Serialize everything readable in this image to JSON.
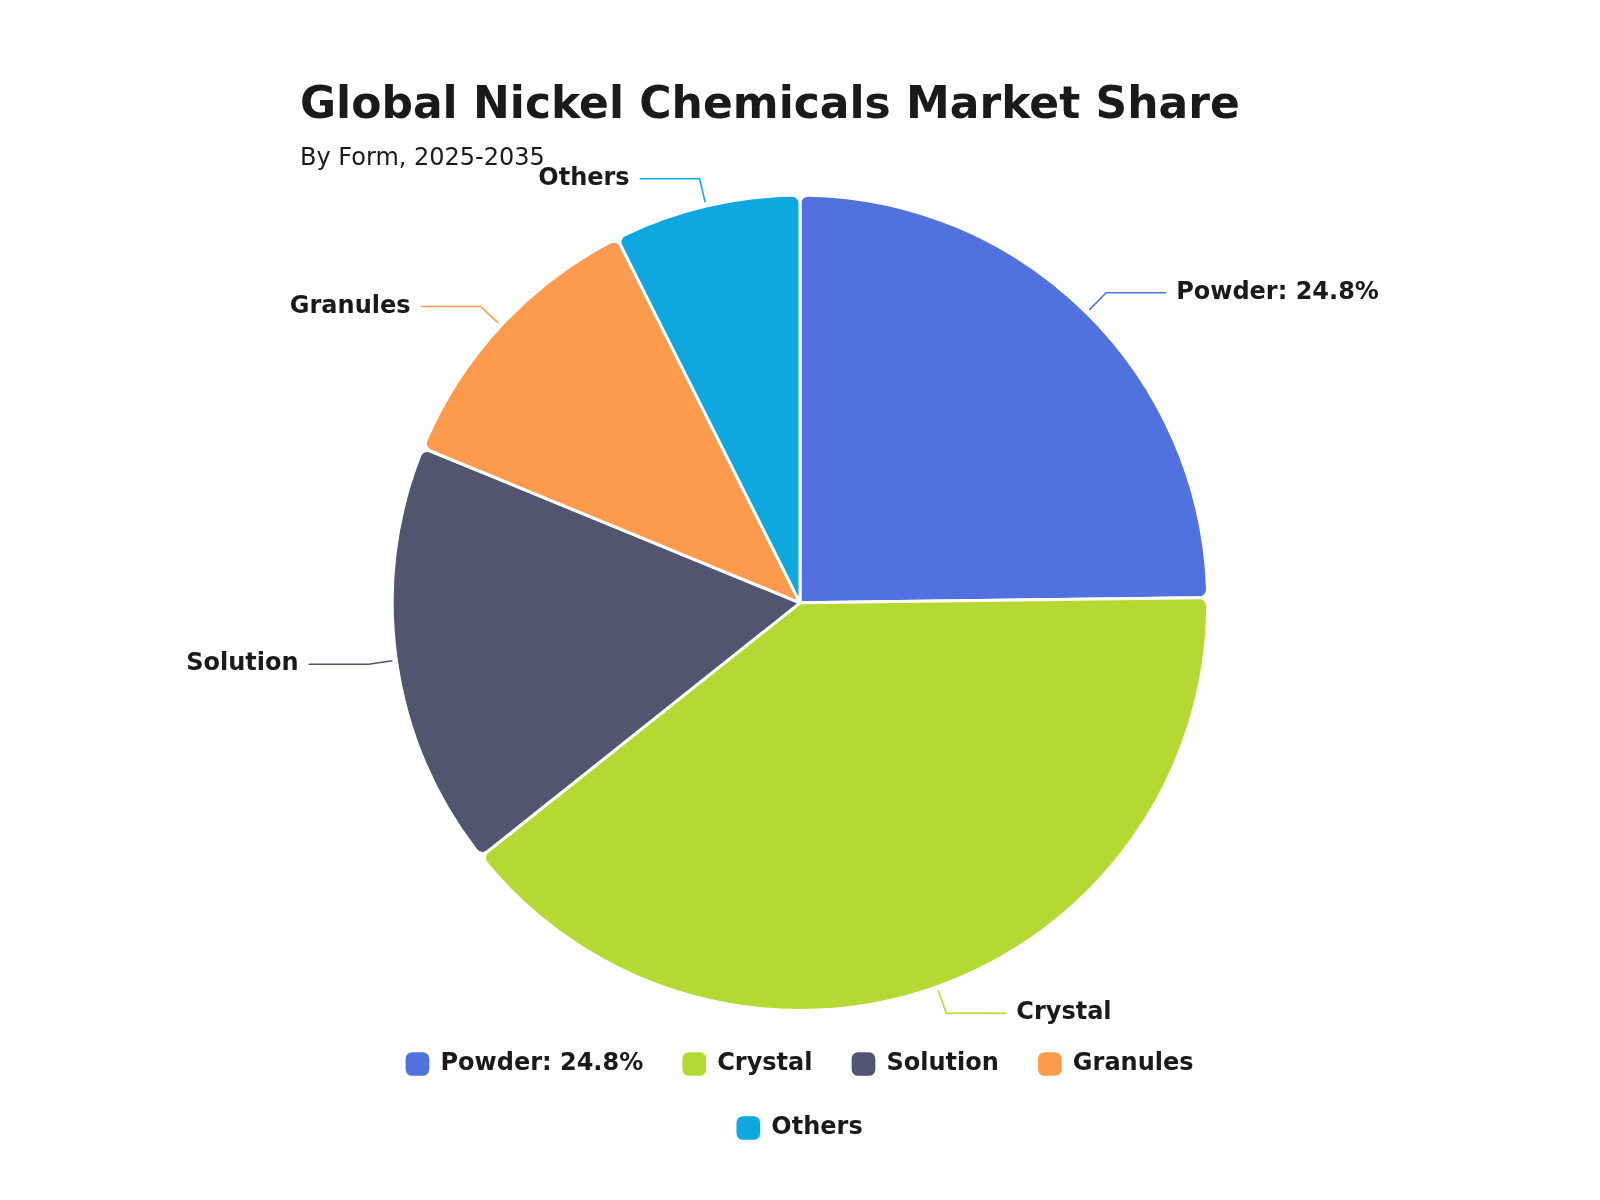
{
  "chart_data": {
    "type": "pie",
    "title": "Global Nickel Chemicals Market Share",
    "subtitle": "By Form, 2025-2035",
    "categories": [
      "Powder: 24.8%",
      "Crystal",
      "Solution",
      "Granules",
      "Others"
    ],
    "values": [
      24.8,
      39.5,
      16.9,
      11.4,
      7.4
    ],
    "colors": [
      "#5171de",
      "#b5d832",
      "#525470",
      "#fe9a4e",
      "#0ea8df"
    ],
    "legend": "bottom"
  }
}
